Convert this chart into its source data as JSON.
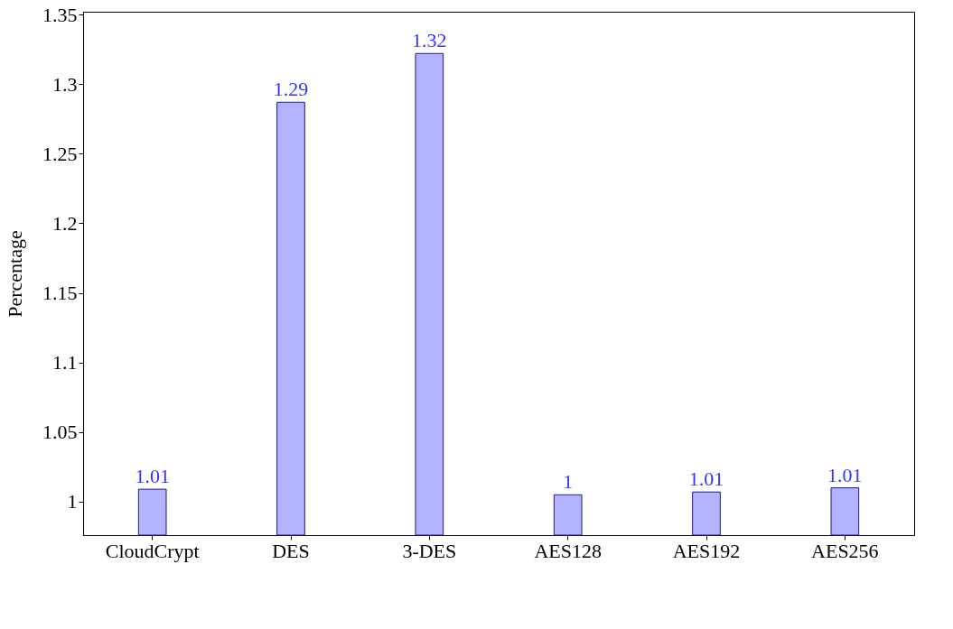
{
  "chart_data": {
    "type": "bar",
    "ylabel": "Percentage",
    "categories": [
      "CloudCrypt",
      "DES",
      "3-DES",
      "AES128",
      "AES192",
      "AES256"
    ],
    "values": [
      1.009,
      1.287,
      1.322,
      1.005,
      1.007,
      1.01
    ],
    "value_labels": [
      "1.01",
      "1.29",
      "1.32",
      "1",
      "1.01",
      "1.01"
    ],
    "color": "#b3b3ff",
    "ylim": [
      0.976,
      1.352
    ],
    "yticks": [
      {
        "value": 1,
        "label": "1"
      },
      1.05,
      {
        "value": 1.1,
        "label": "1.1"
      },
      1.15,
      {
        "value": 1.2,
        "label": "1.2"
      },
      1.25,
      {
        "value": 1.3,
        "label": "1.3"
      },
      1.35
    ],
    "grid": false
  }
}
